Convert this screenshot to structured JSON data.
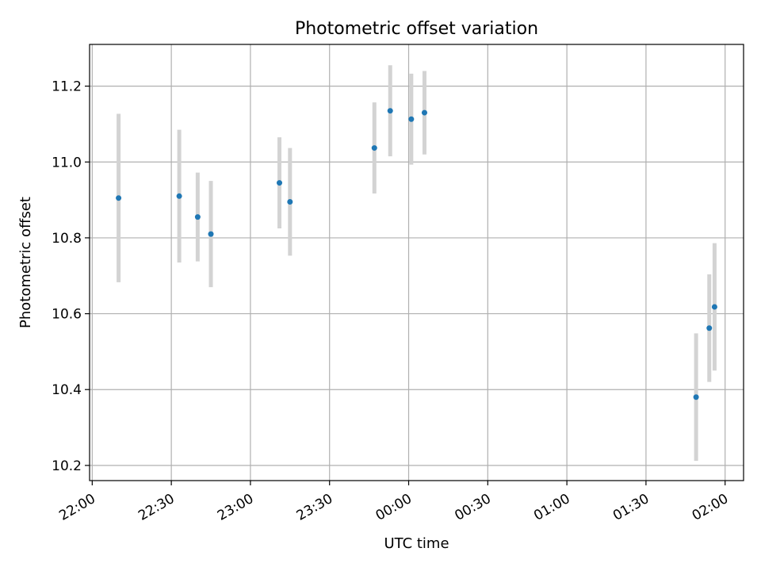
{
  "chart_data": {
    "type": "scatter",
    "title": "Photometric offset variation",
    "xlabel": "UTC time",
    "ylabel": "Photometric offset",
    "x_axis_kind": "time",
    "x_ticks": [
      "22:00",
      "22:30",
      "23:00",
      "23:30",
      "00:00",
      "00:30",
      "01:00",
      "01:30",
      "02:00"
    ],
    "y_ticks": [
      "10.2",
      "10.4",
      "10.6",
      "10.8",
      "11.0",
      "11.2"
    ],
    "xlim": [
      "21:59",
      "02:07"
    ],
    "ylim": [
      10.16,
      11.31
    ],
    "grid": true,
    "colors": {
      "point": "#1f77b4",
      "errorbar": "#d3d3d3",
      "grid": "#b0b0b0"
    },
    "series": [
      {
        "points": [
          {
            "x": "22:10",
            "y": 10.905,
            "yerr": 0.222
          },
          {
            "x": "22:33",
            "y": 10.91,
            "yerr": 0.175
          },
          {
            "x": "22:40",
            "y": 10.855,
            "yerr": 0.117
          },
          {
            "x": "22:45",
            "y": 10.81,
            "yerr": 0.14
          },
          {
            "x": "23:11",
            "y": 10.945,
            "yerr": 0.12
          },
          {
            "x": "23:15",
            "y": 10.895,
            "yerr": 0.142
          },
          {
            "x": "23:47",
            "y": 11.037,
            "yerr": 0.12
          },
          {
            "x": "23:53",
            "y": 11.135,
            "yerr": 0.12
          },
          {
            "x": "00:01",
            "y": 11.113,
            "yerr": 0.12
          },
          {
            "x": "00:06",
            "y": 11.13,
            "yerr": 0.11
          },
          {
            "x": "01:49",
            "y": 10.38,
            "yerr": 0.168
          },
          {
            "x": "01:54",
            "y": 10.562,
            "yerr": 0.142
          },
          {
            "x": "01:56",
            "y": 10.618,
            "yerr": 0.168
          }
        ]
      }
    ]
  }
}
